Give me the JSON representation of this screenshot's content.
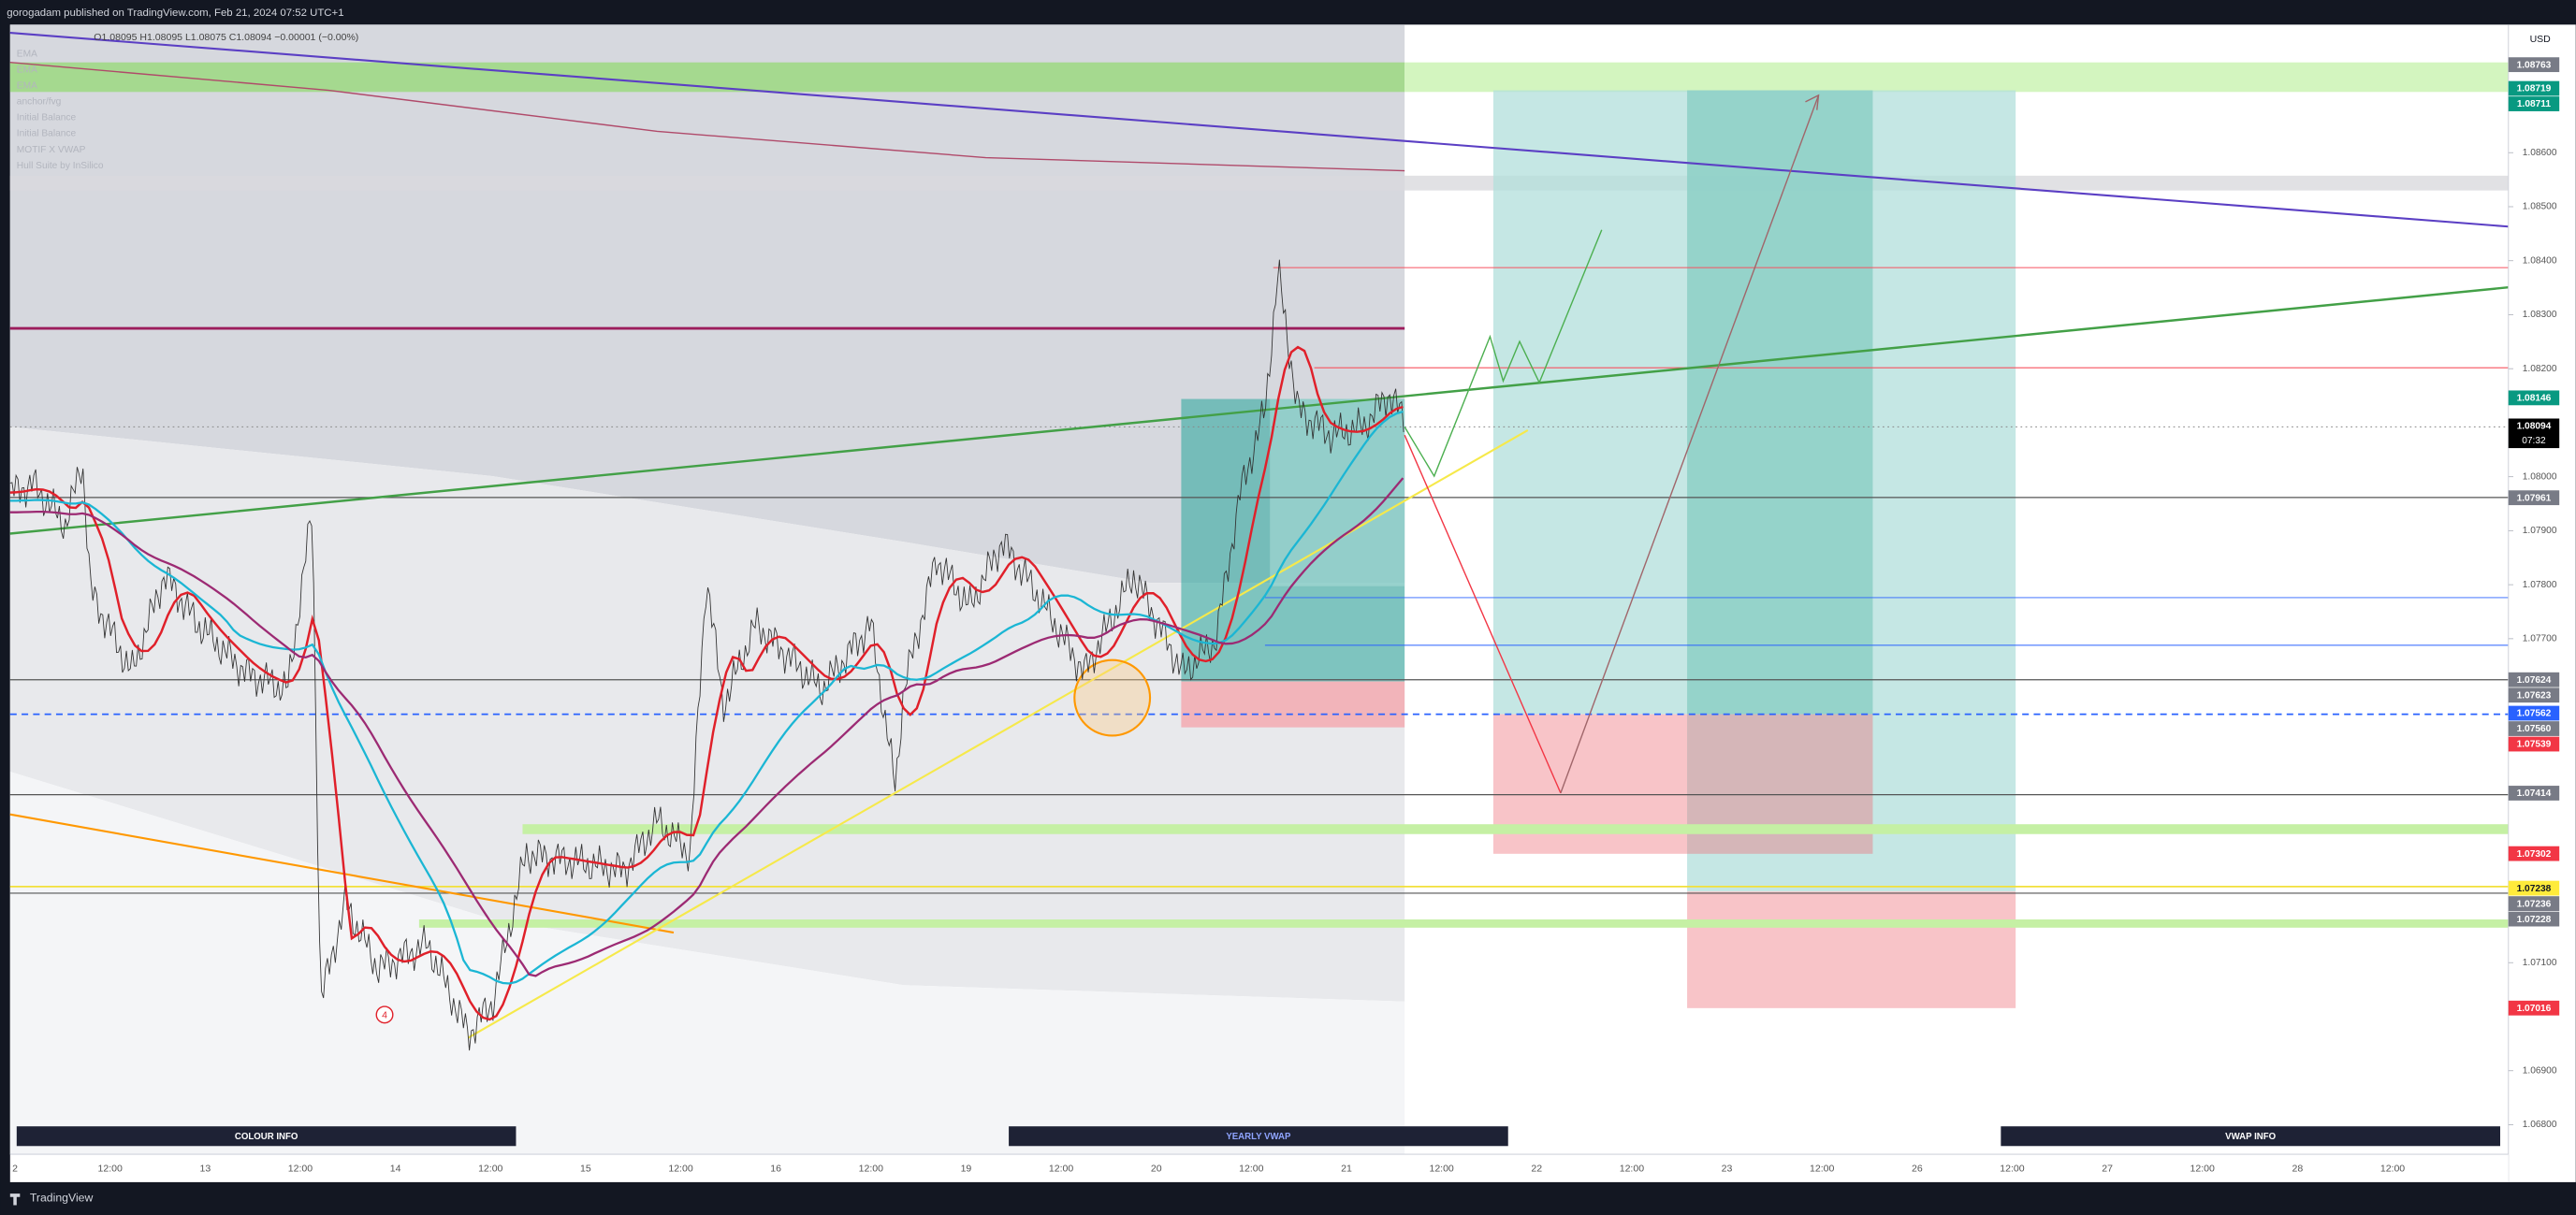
{
  "header": {
    "title": "gorogadam published on TradingView.com, Feb 21, 2024 07:52 UTC+1"
  },
  "legend": {
    "ohlc": "O1.08095 H1.08095 L1.08075 C1.08094 −0.00001 (−0.00%)",
    "indicators": [
      "EMA",
      "EMA",
      "EMA",
      "anchor/fvg",
      "Initial Balance",
      "Initial Balance",
      "MOTIF X VWAP",
      "Hull Suite by InSilico"
    ]
  },
  "price_axis": {
    "currency": "USD",
    "ticks": [
      {
        "value": 1.086,
        "label": "1.08600"
      },
      {
        "value": 1.085,
        "label": "1.08500"
      },
      {
        "value": 1.084,
        "label": "1.08400"
      },
      {
        "value": 1.083,
        "label": "1.08300"
      },
      {
        "value": 1.082,
        "label": "1.08200"
      },
      {
        "value": 1.08,
        "label": "1.08000"
      },
      {
        "value": 1.079,
        "label": "1.07900"
      },
      {
        "value": 1.078,
        "label": "1.07800"
      },
      {
        "value": 1.077,
        "label": "1.07700"
      },
      {
        "value": 1.071,
        "label": "1.07100"
      },
      {
        "value": 1.069,
        "label": "1.06900"
      },
      {
        "value": 1.068,
        "label": "1.06800"
      }
    ],
    "badges": [
      {
        "value": 1.08763,
        "color": "#787b86"
      },
      {
        "value": 1.08719,
        "color": "#089981"
      },
      {
        "value": 1.08711,
        "color": "#089981"
      },
      {
        "value": 1.08146,
        "color": "#089981"
      },
      {
        "value": 1.08094,
        "color": "#000000",
        "countdown": "07:32"
      },
      {
        "value": 1.07961,
        "color": "#787b86"
      },
      {
        "value": 1.07624,
        "color": "#787b86"
      },
      {
        "value": 1.07623,
        "color": "#787b86"
      },
      {
        "value": 1.07562,
        "color": "#2962ff"
      },
      {
        "value": 1.0756,
        "color": "#787b86"
      },
      {
        "value": 1.07539,
        "color": "#f23645"
      },
      {
        "value": 1.07414,
        "color": "#787b86"
      },
      {
        "value": 1.07302,
        "color": "#f23645"
      },
      {
        "value": 1.07238,
        "color": "#ffeb3b"
      },
      {
        "value": 1.07236,
        "color": "#787b86"
      },
      {
        "value": 1.07228,
        "color": "#787b86"
      },
      {
        "value": 1.07016,
        "color": "#f23645"
      }
    ]
  },
  "time_axis": {
    "labels": [
      "2",
      "12:00",
      "13",
      "12:00",
      "14",
      "12:00",
      "15",
      "12:00",
      "16",
      "12:00",
      "19",
      "12:00",
      "20",
      "12:00",
      "21",
      "12:00",
      "22",
      "12:00",
      "23",
      "12:00",
      "26",
      "12:00",
      "27",
      "12:00",
      "28",
      "12:00"
    ]
  },
  "buttons": [
    "COLOUR INFO",
    "YEARLY VWAP",
    "VWAP INFO"
  ],
  "annotations": {
    "circle_label": "4"
  },
  "footer": {
    "brand": "TradingView"
  }
}
